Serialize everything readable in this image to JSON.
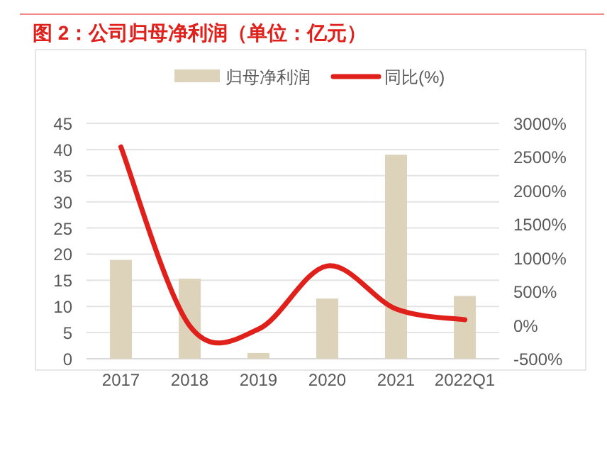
{
  "chart_data": {
    "type": "bar",
    "title": "图 2：公司归母净利润（单位：亿元）",
    "categories": [
      "2017",
      "2018",
      "2019",
      "2020",
      "2021",
      "2022Q1"
    ],
    "series": [
      {
        "name": "归母净利润",
        "color": "#ddd3bb",
        "values": [
          18.9,
          15.3,
          1.1,
          11.5,
          39.0,
          12.0
        ]
      },
      {
        "name": "同比(%)",
        "type": "line",
        "axis": "y2",
        "color": "#e0201b",
        "values": [
          2650,
          -10,
          -60,
          880,
          240,
          80
        ]
      }
    ],
    "ylim": [
      0,
      45
    ],
    "yticks": [
      0,
      5,
      10,
      15,
      20,
      25,
      30,
      35,
      40,
      45
    ],
    "y2lim": [
      -500,
      3000
    ],
    "y2ticks": [
      {
        "value": -500,
        "label": "-500%"
      },
      {
        "value": 0,
        "label": "0%"
      },
      {
        "value": 500,
        "label": "500%"
      },
      {
        "value": 1000,
        "label": "1000%"
      },
      {
        "value": 1500,
        "label": "1500%"
      },
      {
        "value": 2000,
        "label": "2000%"
      },
      {
        "value": 2500,
        "label": "2500%"
      },
      {
        "value": 3000,
        "label": "3000%"
      }
    ],
    "grid": "y",
    "legend": "top"
  }
}
